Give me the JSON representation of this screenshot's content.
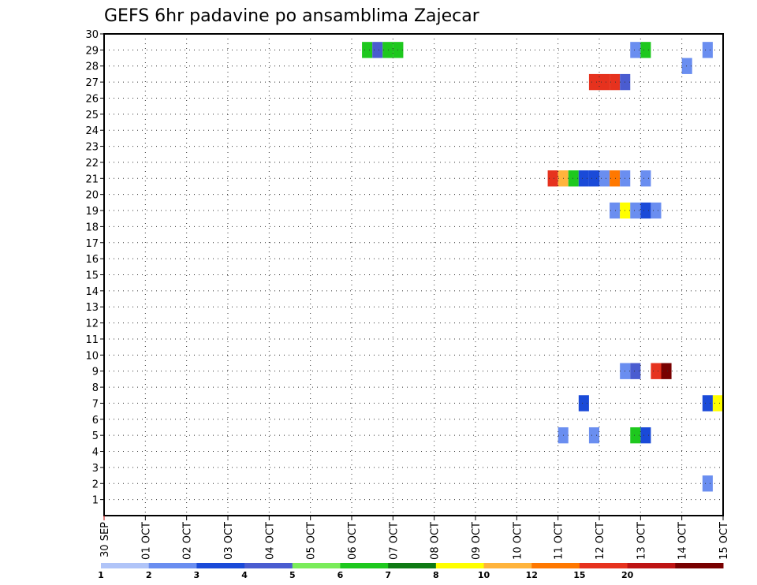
{
  "chart_data": {
    "type": "heatmap",
    "title": "GEFS 6hr padavine po ansamblima Zajecar",
    "x_start": "2019-09-30",
    "x_end": "2019-10-15",
    "x_step_hours": 6,
    "x_tick_labels": [
      "30 SEP",
      "01 OCT",
      "02 OCT",
      "03 OCT",
      "04 OCT",
      "05 OCT",
      "06 OCT",
      "07 OCT",
      "08 OCT",
      "09 OCT",
      "10 OCT",
      "11 OCT",
      "12 OCT",
      "13 OCT",
      "14 OCT",
      "15 OCT"
    ],
    "y_tick_labels": [
      "1",
      "2",
      "3",
      "4",
      "5",
      "6",
      "7",
      "8",
      "9",
      "10",
      "11",
      "12",
      "13",
      "14",
      "15",
      "16",
      "17",
      "18",
      "19",
      "20",
      "21",
      "22",
      "23",
      "24",
      "25",
      "26",
      "27",
      "28",
      "29",
      "30"
    ],
    "ylim": [
      0,
      30
    ],
    "grid": true,
    "colorbar": {
      "colors": [
        "#b0c4f8",
        "#6a8ef0",
        "#1a4ad8",
        "#4a5cd0",
        "#7aec5a",
        "#1ec81e",
        "#0f7a14",
        "#ffff00",
        "#ffb43c",
        "#ff7800",
        "#e6321e",
        "#be1414",
        "#780000"
      ],
      "labels": [
        "1",
        "2",
        "3",
        "4",
        "5",
        "6",
        "7",
        "8",
        "10",
        "12",
        "15",
        "20"
      ]
    },
    "cells": [
      {
        "member": 29,
        "time": "2019-10-06 06",
        "value": 5
      },
      {
        "member": 29,
        "time": "2019-10-06 12",
        "value": 3
      },
      {
        "member": 29,
        "time": "2019-10-06 18",
        "value": 5
      },
      {
        "member": 29,
        "time": "2019-10-07 00",
        "value": 5
      },
      {
        "member": 29,
        "time": "2019-10-12 18",
        "value": 1
      },
      {
        "member": 29,
        "time": "2019-10-13 00",
        "value": 5
      },
      {
        "member": 29,
        "time": "2019-10-14 12",
        "value": 1
      },
      {
        "member": 28,
        "time": "2019-10-14 00",
        "value": 1
      },
      {
        "member": 27,
        "time": "2019-10-11 18",
        "value": 12
      },
      {
        "member": 27,
        "time": "2019-10-12 00",
        "value": 12
      },
      {
        "member": 27,
        "time": "2019-10-12 06",
        "value": 12
      },
      {
        "member": 27,
        "time": "2019-10-12 12",
        "value": 3
      },
      {
        "member": 21,
        "time": "2019-10-10 18",
        "value": 12
      },
      {
        "member": 21,
        "time": "2019-10-11 00",
        "value": 8
      },
      {
        "member": 21,
        "time": "2019-10-11 06",
        "value": 5
      },
      {
        "member": 21,
        "time": "2019-10-11 12",
        "value": 2
      },
      {
        "member": 21,
        "time": "2019-10-11 18",
        "value": 2
      },
      {
        "member": 21,
        "time": "2019-10-12 00",
        "value": 1
      },
      {
        "member": 21,
        "time": "2019-10-12 06",
        "value": 10
      },
      {
        "member": 21,
        "time": "2019-10-12 12",
        "value": 1
      },
      {
        "member": 21,
        "time": "2019-10-13 00",
        "value": 1
      },
      {
        "member": 19,
        "time": "2019-10-12 06",
        "value": 1
      },
      {
        "member": 19,
        "time": "2019-10-12 12",
        "value": 7
      },
      {
        "member": 19,
        "time": "2019-10-12 18",
        "value": 1
      },
      {
        "member": 19,
        "time": "2019-10-13 00",
        "value": 2
      },
      {
        "member": 19,
        "time": "2019-10-13 06",
        "value": 1
      },
      {
        "member": 9,
        "time": "2019-10-12 12",
        "value": 1
      },
      {
        "member": 9,
        "time": "2019-10-12 18",
        "value": 3
      },
      {
        "member": 9,
        "time": "2019-10-13 06",
        "value": 12
      },
      {
        "member": 9,
        "time": "2019-10-13 12",
        "value": 20
      },
      {
        "member": 7,
        "time": "2019-10-11 12",
        "value": 2
      },
      {
        "member": 7,
        "time": "2019-10-14 12",
        "value": 2
      },
      {
        "member": 7,
        "time": "2019-10-14 18",
        "value": 7
      },
      {
        "member": 5,
        "time": "2019-10-11 00",
        "value": 1
      },
      {
        "member": 5,
        "time": "2019-10-11 18",
        "value": 1
      },
      {
        "member": 5,
        "time": "2019-10-12 18",
        "value": 5
      },
      {
        "member": 5,
        "time": "2019-10-13 00",
        "value": 2
      },
      {
        "member": 2,
        "time": "2019-10-14 12",
        "value": 1
      }
    ]
  }
}
